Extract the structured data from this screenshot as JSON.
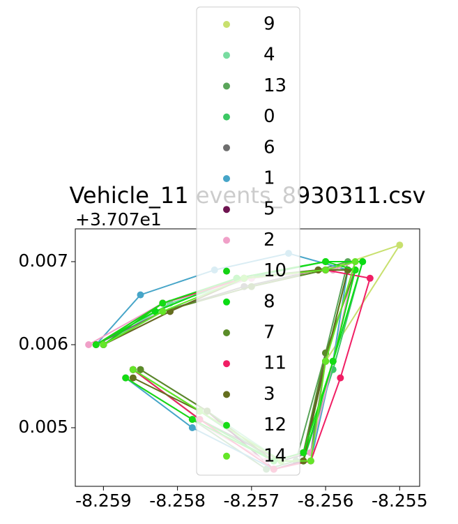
{
  "chart_data": {
    "type": "scatter",
    "title": "Vehicle_11 events_8930311.csv",
    "y_offset_label": "+3.707e1",
    "xlim": [
      -8.25938,
      -8.25473
    ],
    "ylim": [
      0.004294,
      0.007395
    ],
    "xticks": [
      -8.259,
      -8.258,
      -8.257,
      -8.256,
      -8.255
    ],
    "yticks": [
      0.005,
      0.006,
      0.007
    ],
    "legend": "upper center",
    "series": [
      {
        "name": "9",
        "color": "#c8e06e",
        "x": [
          -8.2591,
          -8.2582,
          -8.2571,
          -8.256,
          -8.255,
          -8.256,
          -8.2563,
          -8.2567,
          -8.2577,
          -8.2586
        ],
        "values": [
          0.006,
          0.0064,
          0.0067,
          0.0069,
          0.0072,
          0.0058,
          0.0046,
          0.0046,
          0.0052,
          0.0057
        ]
      },
      {
        "name": "4",
        "color": "#78dca0",
        "x": [
          -8.259,
          -8.2581,
          -8.257,
          -8.2559,
          -8.2556,
          -8.2559,
          -8.2562,
          -8.2566,
          -8.2576,
          -8.2585
        ],
        "values": [
          0.006,
          0.0065,
          0.0068,
          0.0069,
          0.0069,
          0.0058,
          0.0047,
          0.0046,
          0.0052,
          0.0057
        ]
      },
      {
        "name": "13",
        "color": "#5aa55a",
        "x": [
          -8.2591,
          -8.2583,
          -8.2572,
          -8.2561,
          -8.2557,
          -8.256,
          -8.2564,
          -8.2568,
          -8.2578,
          -8.2587
        ],
        "values": [
          0.006,
          0.0064,
          0.0068,
          0.0069,
          0.007,
          0.0059,
          0.0046,
          0.0045,
          0.0051,
          0.0056
        ]
      },
      {
        "name": "0",
        "color": "#3cc864",
        "x": [
          -8.259,
          -8.2582,
          -8.2571,
          -8.256,
          -8.2555,
          -8.2559,
          -8.2563,
          -8.2567,
          -8.2577,
          -8.2586
        ],
        "values": [
          0.006,
          0.0065,
          0.0068,
          0.007,
          0.007,
          0.0057,
          0.0046,
          0.0046,
          0.0052,
          0.0057
        ]
      },
      {
        "name": "6",
        "color": "#6e6e6e",
        "x": [
          -8.2591,
          -8.2582,
          -8.2571,
          -8.2561,
          -8.2557,
          -8.256,
          -8.2562,
          -8.2566,
          -8.2577,
          -8.2586
        ],
        "values": [
          0.006,
          0.0064,
          0.0067,
          0.0069,
          0.0069,
          0.0058,
          0.0047,
          0.0046,
          0.0051,
          0.0057
        ]
      },
      {
        "name": "1",
        "color": "#46a5c8",
        "x": [
          -8.2591,
          -8.2585,
          -8.2575,
          -8.2565,
          -8.2557,
          -8.2559,
          -8.2562,
          -8.2567,
          -8.2578,
          -8.2587
        ],
        "values": [
          0.006,
          0.0066,
          0.0069,
          0.0071,
          0.0069,
          0.0058,
          0.0046,
          0.0045,
          0.005,
          0.0056
        ]
      },
      {
        "name": "5",
        "color": "#6e1450",
        "x": [
          -8.259,
          -8.2581,
          -8.2571,
          -8.256,
          -8.2556,
          -8.256,
          -8.2563,
          -8.2567,
          -8.2576,
          -8.2585
        ],
        "values": [
          0.006,
          0.0064,
          0.0068,
          0.0069,
          0.0069,
          0.0059,
          0.0046,
          0.0045,
          0.0052,
          0.0057
        ]
      },
      {
        "name": "2",
        "color": "#f0a0c8",
        "x": [
          -8.2592,
          -8.2582,
          -8.257,
          -8.2559,
          -8.2556,
          -8.2559,
          -8.2562,
          -8.2568,
          -8.2578,
          -8.2587
        ],
        "values": [
          0.006,
          0.0065,
          0.0068,
          0.0069,
          0.007,
          0.0058,
          0.0047,
          0.0046,
          0.0051,
          0.0056
        ]
      },
      {
        "name": "10",
        "color": "#14d214",
        "x": [
          -8.259,
          -8.2582,
          -8.2571,
          -8.256,
          -8.2557,
          -8.256,
          -8.2563,
          -8.2566,
          -8.2577,
          -8.2586
        ],
        "values": [
          0.006,
          0.0065,
          0.0068,
          0.0069,
          0.0069,
          0.0058,
          0.0046,
          0.0046,
          0.0052,
          0.0057
        ]
      },
      {
        "name": "8",
        "color": "#0adc14",
        "x": [
          -8.2591,
          -8.2583,
          -8.2572,
          -8.256,
          -8.2555,
          -8.2559,
          -8.2563,
          -8.2567,
          -8.2577,
          -8.2586
        ],
        "values": [
          0.006,
          0.0064,
          0.0068,
          0.007,
          0.007,
          0.0058,
          0.0046,
          0.0046,
          0.0051,
          0.0057
        ]
      },
      {
        "name": "7",
        "color": "#5a8c28",
        "x": [
          -8.259,
          -8.2582,
          -8.257,
          -8.256,
          -8.2556,
          -8.256,
          -8.2563,
          -8.2567,
          -8.2576,
          -8.2585
        ],
        "values": [
          0.006,
          0.0064,
          0.0067,
          0.0069,
          0.0069,
          0.0059,
          0.0047,
          0.0046,
          0.0052,
          0.0057
        ]
      },
      {
        "name": "11",
        "color": "#f01e64",
        "x": [
          -8.2591,
          -8.2582,
          -8.2571,
          -8.256,
          -8.2554,
          -8.2558,
          -8.2562,
          -8.2567,
          -8.2577,
          -8.2586
        ],
        "values": [
          0.006,
          0.0065,
          0.0068,
          0.0069,
          0.0068,
          0.0056,
          0.0046,
          0.0045,
          0.0051,
          0.0057
        ]
      },
      {
        "name": "3",
        "color": "#646e1e",
        "x": [
          -8.259,
          -8.2581,
          -8.2571,
          -8.2561,
          -8.2557,
          -8.256,
          -8.2563,
          -8.2566,
          -8.2577,
          -8.2586
        ],
        "values": [
          0.006,
          0.0064,
          0.0068,
          0.0069,
          0.0069,
          0.0058,
          0.0046,
          0.0046,
          0.0052,
          0.0056
        ]
      },
      {
        "name": "12",
        "color": "#14dc14",
        "x": [
          -8.2591,
          -8.2582,
          -8.2572,
          -8.256,
          -8.2556,
          -8.2559,
          -8.2563,
          -8.2567,
          -8.2578,
          -8.2587
        ],
        "values": [
          0.006,
          0.0065,
          0.0068,
          0.007,
          0.0069,
          0.0058,
          0.0047,
          0.0046,
          0.0051,
          0.0056
        ]
      },
      {
        "name": "14",
        "color": "#64e628",
        "x": [
          -8.259,
          -8.2582,
          -8.2571,
          -8.256,
          -8.2556,
          -8.256,
          -8.2562,
          -8.2566,
          -8.2577,
          -8.2586
        ],
        "values": [
          0.006,
          0.0064,
          0.0068,
          0.0069,
          0.007,
          0.0058,
          0.0046,
          0.0046,
          0.0052,
          0.0057
        ]
      }
    ]
  }
}
